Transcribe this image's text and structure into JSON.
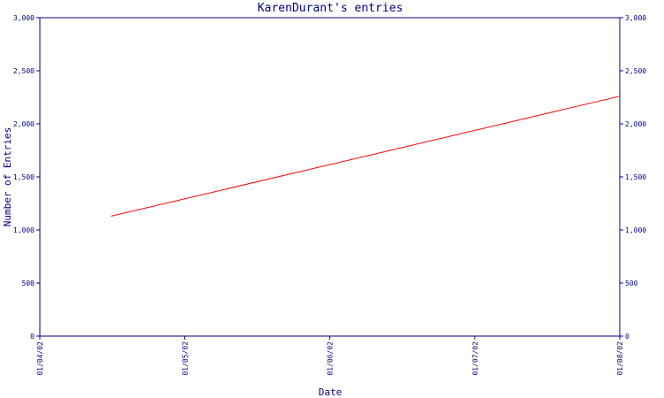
{
  "chart_data": {
    "type": "line",
    "title": "KarenDurant's entries",
    "xlabel": "Date",
    "ylabel": "Number of Entries",
    "x_tick_labels": [
      "01/04/02",
      "01/05/02",
      "01/06/02",
      "01/07/02",
      "01/08/02"
    ],
    "y_ticks": [
      0,
      500,
      1000,
      1500,
      2000,
      2500,
      3000
    ],
    "y_tick_labels": [
      "0",
      "500",
      "1,000",
      "1,500",
      "2,000",
      "2,500",
      "3,000"
    ],
    "ylim": [
      0,
      3000
    ],
    "xlim": [
      "2002-04-01",
      "2002-08-01"
    ],
    "grid": false,
    "right_axis_mirrors_left": true,
    "series": [
      {
        "color": "#ff0000",
        "points": [
          {
            "x": "2002-04-16",
            "y": 1130
          },
          {
            "x": "2002-08-01",
            "y": 2260
          }
        ]
      }
    ],
    "colors": {
      "axis": "#000080",
      "text": "#000080",
      "line": "#ff0000",
      "background": "#ffffff"
    }
  }
}
